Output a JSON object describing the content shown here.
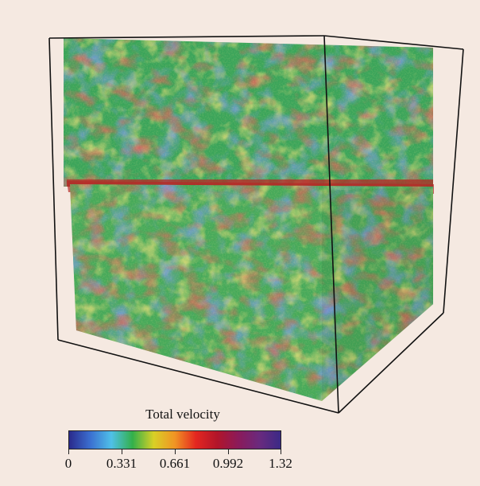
{
  "colorbar": {
    "title": "Total velocity",
    "min": 0,
    "max": 1.32,
    "ticks": [
      "0",
      "0.331",
      "0.661",
      "0.992",
      "1.32"
    ],
    "stops": [
      "#2a2a8c",
      "#3b6fd0",
      "#4fc0e8",
      "#33b04a",
      "#d9d026",
      "#f09424",
      "#e42620",
      "#b2152a",
      "#8b1a5a",
      "#6a2a7e",
      "#3b2a86"
    ]
  },
  "field_colors": {
    "low": "#2f55b5",
    "mid_low": "#2fa76a",
    "mid": "#6bbf3a",
    "mid_high": "#c9c532",
    "high": "#d9762a",
    "peak": "#b3231f"
  }
}
